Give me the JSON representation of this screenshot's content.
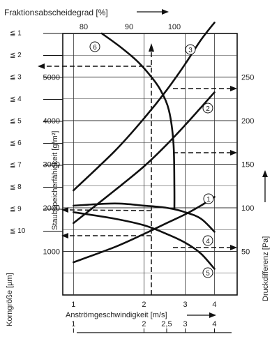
{
  "chart_data": {
    "type": "line",
    "title": "Fraktionsabscheidegrad [%]",
    "top_axis": {
      "ticks": [
        80,
        90,
        100
      ]
    },
    "xlabel": "Anströmgeschwindigkeit [m/s]",
    "x_ticks": [
      "1",
      "2",
      "3",
      "4"
    ],
    "x_scale": "log",
    "xlim": [
      0.9,
      5.0
    ],
    "x_secondary_ticks": [
      "1",
      "2",
      "2,5",
      "3",
      "4"
    ],
    "ylabel_left": "Staubspeicherfähigkeit [g/m²]",
    "yleft_ticks": [
      1000,
      2000,
      3000,
      4000,
      5000
    ],
    "yleft_lim": [
      0,
      6000
    ],
    "ylabel_right": "Druckdifferenz [Pa]",
    "yright_ticks": [
      50,
      100,
      150,
      200,
      250
    ],
    "yright_lim": [
      0,
      300
    ],
    "grain_label": "Korngröße [µm]",
    "grain_classes": [
      "≦ 1",
      "≦ 2",
      "≦ 3",
      "≦ 4",
      "≦ 5",
      "≦ 6",
      "≦ 7",
      "≦ 8",
      "≦ 9",
      "≦ 10"
    ],
    "series": [
      {
        "label": "1",
        "x": [
          1.0,
          1.5,
          2.0,
          2.5,
          3.0,
          3.5,
          4.0
        ],
        "y": [
          750,
          1100,
          1400,
          1650,
          1850,
          2050,
          2250
        ]
      },
      {
        "label": "2",
        "x": [
          1.0,
          1.5,
          2.0,
          2.5,
          3.0,
          3.5,
          4.0
        ],
        "y": [
          1650,
          2400,
          2950,
          3450,
          3900,
          4300,
          4650
        ]
      },
      {
        "label": "3",
        "x": [
          1.0,
          1.5,
          2.0,
          2.5,
          3.0,
          3.5,
          4.0
        ],
        "y": [
          2400,
          3300,
          4050,
          4700,
          5300,
          5850,
          6250
        ]
      },
      {
        "label": "4",
        "x": [
          1.0,
          1.5,
          2.0,
          2.5,
          3.0,
          3.5,
          4.0
        ],
        "y": [
          2050,
          2100,
          2050,
          2000,
          1900,
          1750,
          1450
        ]
      },
      {
        "label": "5",
        "x": [
          1.0,
          1.5,
          2.0,
          2.5,
          3.0,
          3.5,
          4.0
        ],
        "y": [
          1900,
          1750,
          1600,
          1400,
          1200,
          950,
          600
        ]
      },
      {
        "label": "6",
        "x_top": [
          84,
          88,
          92,
          95,
          97,
          98.8,
          99.8,
          100,
          100
        ],
        "grain": [
          1,
          1.6,
          2.3,
          3,
          3.6,
          4.5,
          6.0,
          8.0,
          9.0
        ]
      }
    ]
  }
}
